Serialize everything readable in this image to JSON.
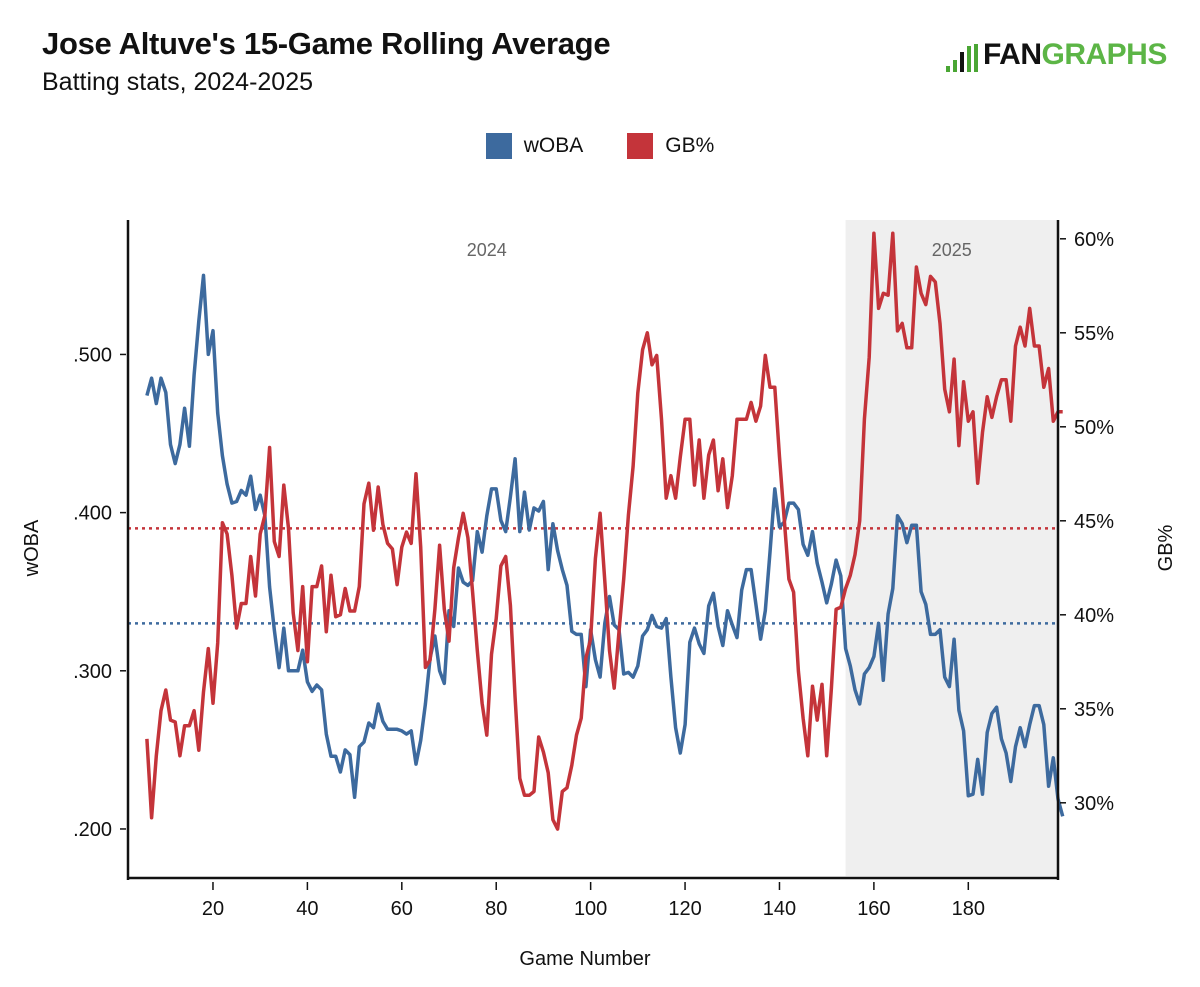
{
  "header": {
    "title": "Jose Altuve's 15-Game Rolling Average",
    "subtitle": "Batting stats, 2024-2025",
    "logo_fan": "FAN",
    "logo_graphs": "GRAPHS"
  },
  "colors": {
    "woba": "#3d6a9e",
    "gb": "#c4343a",
    "season_shade": "#efefef",
    "logo_green": "#5cb546"
  },
  "chart_data": {
    "type": "line",
    "title": "Jose Altuve's 15-Game Rolling Average",
    "subtitle": "Batting stats, 2024-2025",
    "xlabel": "Game Number",
    "ylabel": "wOBA",
    "y2label": "GB%",
    "xlim": [
      2,
      199
    ],
    "ylim": [
      0.169,
      0.585
    ],
    "y2lim": [
      26,
      61
    ],
    "x_ticks": [
      20,
      40,
      60,
      80,
      100,
      120,
      140,
      160,
      180
    ],
    "y_ticks": [
      0.2,
      0.3,
      0.4,
      0.5
    ],
    "y_tick_labels": [
      ".200",
      ".300",
      ".400",
      ".500"
    ],
    "y2_ticks": [
      30,
      35,
      40,
      45,
      50,
      55,
      60
    ],
    "y2_tick_labels": [
      "30%",
      "35%",
      "40%",
      "45%",
      "50%",
      "55%",
      "60%"
    ],
    "legend": [
      "wOBA",
      "GB%"
    ],
    "legend_position": "top-center",
    "grid": false,
    "seasons": [
      {
        "label": "2024",
        "start": 2,
        "end": 154
      },
      {
        "label": "2025",
        "start": 154,
        "end": 199
      }
    ],
    "reference_lines": [
      {
        "series": "wOBA",
        "axis": "left",
        "value": 0.33
      },
      {
        "series": "GB%",
        "axis": "right",
        "value": 44.6
      }
    ],
    "x_start": 6,
    "series": [
      {
        "name": "wOBA",
        "axis": "left",
        "values": [
          0.474,
          0.485,
          0.469,
          0.485,
          0.476,
          0.443,
          0.431,
          0.443,
          0.466,
          0.442,
          0.487,
          0.521,
          0.55,
          0.5,
          0.515,
          0.463,
          0.436,
          0.418,
          0.406,
          0.407,
          0.414,
          0.411,
          0.423,
          0.402,
          0.411,
          0.398,
          0.353,
          0.326,
          0.302,
          0.327,
          0.3,
          0.3,
          0.3,
          0.313,
          0.293,
          0.287,
          0.291,
          0.288,
          0.26,
          0.246,
          0.246,
          0.236,
          0.25,
          0.247,
          0.22,
          0.252,
          0.255,
          0.267,
          0.264,
          0.279,
          0.268,
          0.263,
          0.263,
          0.263,
          0.262,
          0.26,
          0.262,
          0.241,
          0.256,
          0.279,
          0.308,
          0.322,
          0.3,
          0.292,
          0.338,
          0.328,
          0.365,
          0.356,
          0.354,
          0.357,
          0.388,
          0.375,
          0.398,
          0.415,
          0.415,
          0.395,
          0.388,
          0.41,
          0.434,
          0.388,
          0.413,
          0.389,
          0.403,
          0.401,
          0.407,
          0.364,
          0.393,
          0.376,
          0.364,
          0.354,
          0.325,
          0.323,
          0.323,
          0.29,
          0.326,
          0.307,
          0.296,
          0.33,
          0.347,
          0.329,
          0.326,
          0.298,
          0.299,
          0.296,
          0.303,
          0.322,
          0.326,
          0.335,
          0.328,
          0.327,
          0.333,
          0.296,
          0.264,
          0.248,
          0.266,
          0.318,
          0.327,
          0.317,
          0.311,
          0.341,
          0.349,
          0.328,
          0.316,
          0.338,
          0.329,
          0.321,
          0.351,
          0.364,
          0.364,
          0.342,
          0.32,
          0.338,
          0.375,
          0.415,
          0.391,
          0.394,
          0.406,
          0.406,
          0.402,
          0.38,
          0.373,
          0.388,
          0.368,
          0.356,
          0.343,
          0.355,
          0.37,
          0.36,
          0.314,
          0.303,
          0.288,
          0.279,
          0.298,
          0.302,
          0.309,
          0.33,
          0.294,
          0.336,
          0.352,
          0.398,
          0.393,
          0.381,
          0.392,
          0.392,
          0.35,
          0.342,
          0.323,
          0.323,
          0.326,
          0.296,
          0.29,
          0.32,
          0.275,
          0.262,
          0.221,
          0.222,
          0.244,
          0.222,
          0.261,
          0.273,
          0.277,
          0.257,
          0.248,
          0.23,
          0.252,
          0.264,
          0.252,
          0.266,
          0.278,
          0.278,
          0.266,
          0.227,
          0.245,
          0.219,
          0.208
        ]
      },
      {
        "name": "GB%",
        "axis": "right",
        "values": [
          33.4,
          29.2,
          32.5,
          34.9,
          36.0,
          34.4,
          34.3,
          32.5,
          34.1,
          34.1,
          34.9,
          32.8,
          35.9,
          38.2,
          35.3,
          38.5,
          44.9,
          44.3,
          42.1,
          39.3,
          40.6,
          40.6,
          43.1,
          41.0,
          44.3,
          45.3,
          48.9,
          43.9,
          43.1,
          46.9,
          44.6,
          40.1,
          38.1,
          41.5,
          37.5,
          41.5,
          41.5,
          42.6,
          39.1,
          42.1,
          39.9,
          40.0,
          41.4,
          40.2,
          40.2,
          41.5,
          45.9,
          47.0,
          44.5,
          46.8,
          44.8,
          43.8,
          43.5,
          41.6,
          43.6,
          44.4,
          43.8,
          47.5,
          43.6,
          37.2,
          37.6,
          40.3,
          43.7,
          40.3,
          38.6,
          42.5,
          44.1,
          45.4,
          44.1,
          41.2,
          38.1,
          35.3,
          33.6,
          37.9,
          39.8,
          42.6,
          43.1,
          40.5,
          35.6,
          31.3,
          30.4,
          30.4,
          30.6,
          33.5,
          32.7,
          31.6,
          29.1,
          28.6,
          30.6,
          30.8,
          32.0,
          33.6,
          34.5,
          37.7,
          38.7,
          43.0,
          45.4,
          41.8,
          38.1,
          36.1,
          39.1,
          41.9,
          45.3,
          47.9,
          51.8,
          54.1,
          55.0,
          53.3,
          53.8,
          50.4,
          46.2,
          47.4,
          46.2,
          48.4,
          50.4,
          50.4,
          46.9,
          49.3,
          46.2,
          48.5,
          49.3,
          46.6,
          48.3,
          45.7,
          47.4,
          50.4,
          50.4,
          50.4,
          51.3,
          50.3,
          51.1,
          53.8,
          52.1,
          52.1,
          48.4,
          45.1,
          41.9,
          41.2,
          37.0,
          34.5,
          32.5,
          36.2,
          34.4,
          36.3,
          32.5,
          36.1,
          40.3,
          40.4,
          41.4,
          42.1,
          43.2,
          45.0,
          50.4,
          53.7,
          60.3,
          56.3,
          57.1,
          57.0,
          60.3,
          55.1,
          55.5,
          54.2,
          54.2,
          58.5,
          57.1,
          56.5,
          58.0,
          57.7,
          55.5,
          52.0,
          50.8,
          53.6,
          49.0,
          52.4,
          50.3,
          50.8,
          47.0,
          49.7,
          51.6,
          50.5,
          51.6,
          52.5,
          52.5,
          50.3,
          54.3,
          55.3,
          54.3,
          56.3,
          54.3,
          54.3,
          52.1,
          53.1,
          50.3,
          50.8,
          50.8
        ]
      }
    ]
  }
}
